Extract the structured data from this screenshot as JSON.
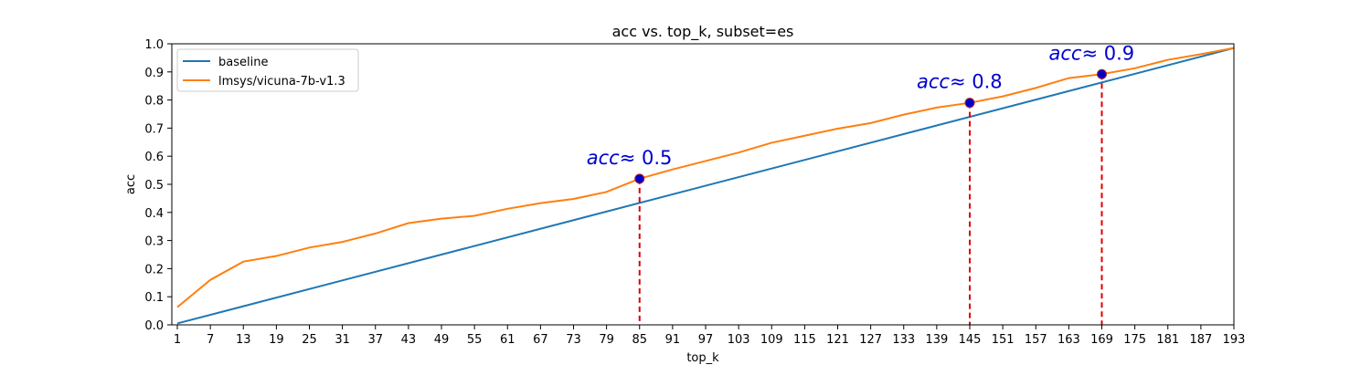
{
  "chart_data": {
    "type": "line",
    "title": "acc vs. top_k, subset=es",
    "xlabel": "top_k",
    "ylabel": "acc",
    "xlim": [
      0,
      193
    ],
    "ylim": [
      0,
      1.0
    ],
    "xticks": [
      1,
      7,
      13,
      19,
      25,
      31,
      37,
      43,
      49,
      55,
      61,
      67,
      73,
      79,
      85,
      91,
      97,
      103,
      109,
      115,
      121,
      127,
      133,
      139,
      145,
      151,
      157,
      163,
      169,
      175,
      181,
      187,
      193
    ],
    "yticks": [
      0.0,
      0.1,
      0.2,
      0.3,
      0.4,
      0.5,
      0.6,
      0.7,
      0.8,
      0.9,
      1.0
    ],
    "grid": false,
    "legend_position": "top-left",
    "series": [
      {
        "name": "baseline",
        "color": "#1f77b4",
        "x": [
          1,
          193
        ],
        "y": [
          0.005,
          0.985
        ]
      },
      {
        "name": "lmsys/vicuna-7b-v1.3",
        "color": "#ff7f0e",
        "x": [
          1,
          7,
          13,
          19,
          25,
          31,
          37,
          43,
          49,
          55,
          61,
          67,
          73,
          79,
          85,
          91,
          97,
          103,
          109,
          115,
          121,
          127,
          133,
          139,
          145,
          151,
          157,
          163,
          169,
          175,
          181,
          187,
          193
        ],
        "y": [
          0.063,
          0.16,
          0.225,
          0.245,
          0.275,
          0.295,
          0.325,
          0.362,
          0.378,
          0.388,
          0.413,
          0.433,
          0.448,
          0.473,
          0.52,
          0.553,
          0.583,
          0.613,
          0.648,
          0.673,
          0.698,
          0.718,
          0.748,
          0.773,
          0.79,
          0.813,
          0.843,
          0.878,
          0.892,
          0.913,
          0.943,
          0.963,
          0.985
        ]
      }
    ],
    "annotations": [
      {
        "x": 85,
        "y": 0.52,
        "label": "0.5",
        "prefix": "acc",
        "symbol": "≈"
      },
      {
        "x": 145,
        "y": 0.79,
        "label": "0.8",
        "prefix": "acc",
        "symbol": "≈"
      },
      {
        "x": 169,
        "y": 0.892,
        "label": "0.9",
        "prefix": "acc",
        "symbol": "≈"
      }
    ],
    "annotation_color": "#0000cc",
    "marker_color": "#0000cc",
    "vline_color": "#dd0000"
  }
}
